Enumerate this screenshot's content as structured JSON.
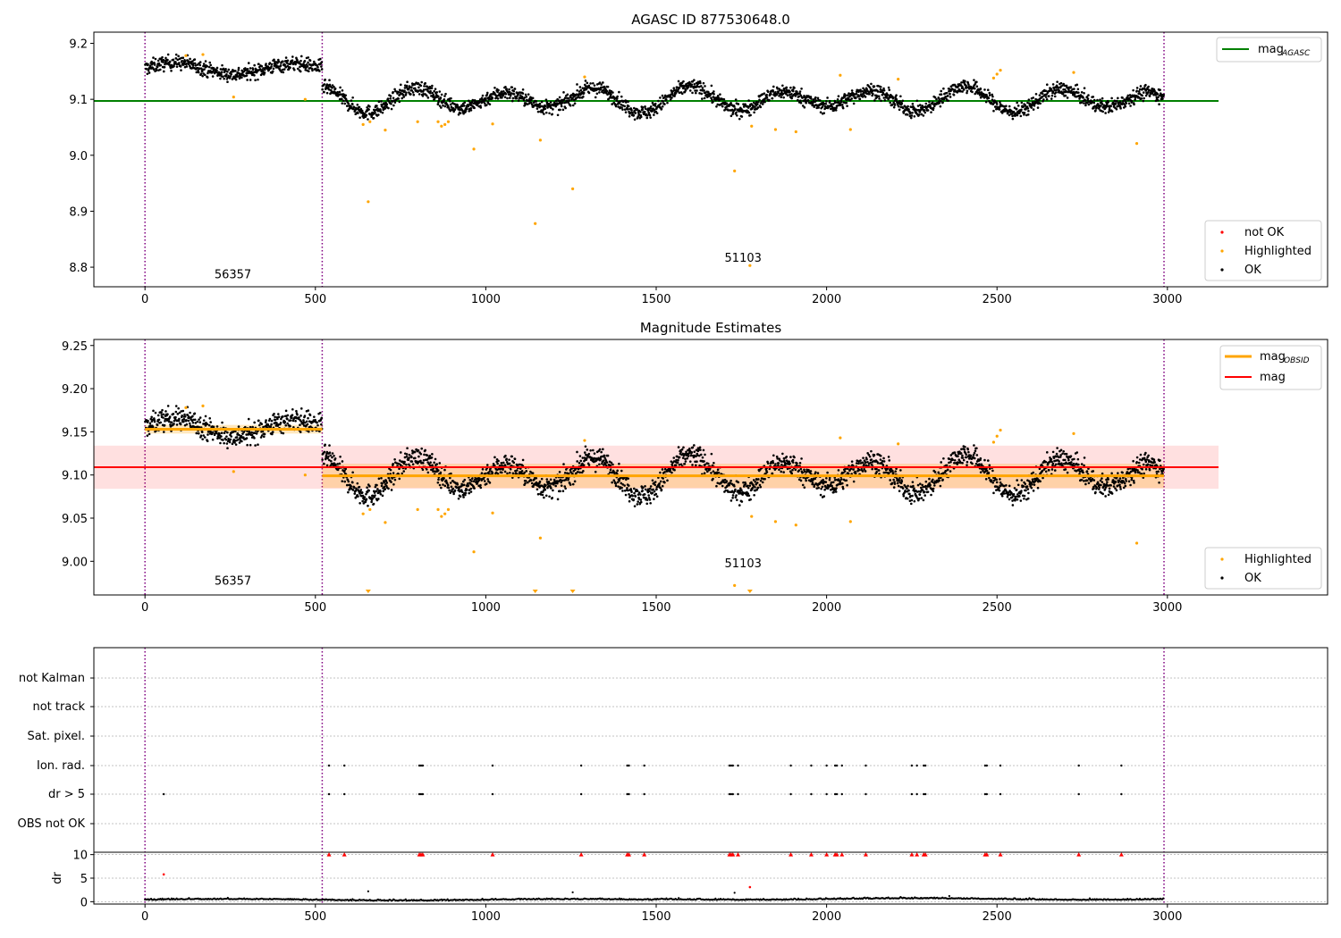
{
  "chart_data": [
    {
      "type": "scatter",
      "title": "AGASC ID 877530648.0",
      "xlim": [
        -150,
        3470
      ],
      "ylim": [
        8.765,
        9.22
      ],
      "xticks": [
        0,
        500,
        1000,
        1500,
        2000,
        2500,
        3000
      ],
      "yticks": [
        8.8,
        8.9,
        9.0,
        9.1,
        9.2
      ],
      "grid": false,
      "vlines": [
        0,
        520,
        2990
      ],
      "hline": {
        "name": "mag_AGASC",
        "y": 9.097,
        "color": "#008000",
        "xrange": [
          -150,
          3150
        ]
      },
      "obsid_labels": [
        {
          "x": 258,
          "y": 8.78,
          "text": "56357"
        },
        {
          "x": 1755,
          "y": 8.81,
          "text": "51103"
        }
      ],
      "legend_line": {
        "name": "mag",
        "sub": "AGASC",
        "color": "#008000",
        "placement": "upper right"
      },
      "legend_points": {
        "placement": "lower right",
        "entries": [
          {
            "label": "not OK",
            "color": "#ff0000"
          },
          {
            "label": "Highlighted",
            "color": "#ffa500"
          },
          {
            "label": "OK",
            "color": "#000000"
          }
        ]
      },
      "ok_segments": [
        {
          "x0": 0,
          "x1": 520,
          "level": 9.155,
          "noise": 0.008,
          "amp": 0.005,
          "period": 320
        },
        {
          "x0": 520,
          "x1": 2990,
          "level": 9.1,
          "noise": 0.008,
          "amp": 0.018,
          "period": 270
        }
      ],
      "highlighted_points": [
        [
          120,
          9.178
        ],
        [
          170,
          9.18
        ],
        [
          260,
          9.104
        ],
        [
          470,
          9.1
        ],
        [
          640,
          9.055
        ],
        [
          655,
          8.917
        ],
        [
          660,
          9.06
        ],
        [
          705,
          9.045
        ],
        [
          800,
          9.06
        ],
        [
          860,
          9.06
        ],
        [
          870,
          9.052
        ],
        [
          880,
          9.055
        ],
        [
          890,
          9.06
        ],
        [
          965,
          9.011
        ],
        [
          1020,
          9.056
        ],
        [
          1145,
          8.878
        ],
        [
          1160,
          9.027
        ],
        [
          1255,
          8.94
        ],
        [
          1290,
          9.14
        ],
        [
          1730,
          8.972
        ],
        [
          1775,
          8.803
        ],
        [
          1780,
          9.052
        ],
        [
          1850,
          9.046
        ],
        [
          1910,
          9.042
        ],
        [
          2040,
          9.143
        ],
        [
          2070,
          9.046
        ],
        [
          2210,
          9.136
        ],
        [
          2490,
          9.138
        ],
        [
          2500,
          9.145
        ],
        [
          2510,
          9.152
        ],
        [
          2725,
          9.148
        ],
        [
          2910,
          9.021
        ]
      ]
    },
    {
      "type": "scatter",
      "title": "Magnitude Estimates",
      "xlim": [
        -150,
        3470
      ],
      "ylim": [
        8.961,
        9.257
      ],
      "xticks": [
        0,
        500,
        1000,
        1500,
        2000,
        2500,
        3000
      ],
      "yticks": [
        9.0,
        9.05,
        9.1,
        9.15,
        9.2,
        9.25
      ],
      "ytick_labels": [
        "9.00",
        "9.05",
        "9.10",
        "9.15",
        "9.20",
        "9.25"
      ],
      "grid": false,
      "vlines": [
        0,
        520,
        2990
      ],
      "mag_line": {
        "name": "mag",
        "y": 9.109,
        "band": [
          9.084,
          9.134
        ],
        "color": "#ff0000",
        "xrange": [
          -150,
          3150
        ]
      },
      "mag_obsid": [
        {
          "x0": 0,
          "x1": 520,
          "y": 9.153,
          "band": [
            9.148,
            9.158
          ]
        },
        {
          "x0": 520,
          "x1": 2990,
          "y": 9.099,
          "band": [
            9.085,
            9.113
          ]
        }
      ],
      "obsid_labels": [
        {
          "x": 258,
          "y": 8.973,
          "text": "56357"
        },
        {
          "x": 1755,
          "y": 8.993,
          "text": "51103"
        }
      ],
      "legend_lines": {
        "placement": "upper right",
        "entries": [
          {
            "label": "mag",
            "sub": "OBSID",
            "color": "#ffa500"
          },
          {
            "label": "mag",
            "sub": "",
            "color": "#ff0000"
          }
        ]
      },
      "legend_points": {
        "placement": "lower right",
        "entries": [
          {
            "label": "Highlighted",
            "color": "#ffa500"
          },
          {
            "label": "OK",
            "color": "#000000"
          }
        ]
      },
      "lower_limit_markers": [
        655,
        1145,
        1255,
        1775
      ]
    },
    {
      "type": "scatter",
      "title": "",
      "xlim": [
        -150,
        3470
      ],
      "xticks": [
        0,
        500,
        1000,
        1500,
        2000,
        2500,
        3000
      ],
      "vlines": [
        0,
        520,
        2990
      ],
      "flag_rows": [
        "not Kalman",
        "not track",
        "Sat. pixel.",
        "Ion. rad.",
        "dr > 5",
        "OBS not OK"
      ],
      "ion_rad_x": [
        540,
        585,
        805,
        810,
        815,
        1020,
        1280,
        1415,
        1420,
        1465,
        1715,
        1720,
        1725,
        1740,
        1895,
        1955,
        2000,
        2025,
        2030,
        2045,
        2115,
        2250,
        2265,
        2285,
        2290,
        2465,
        2470,
        2510,
        2740,
        2865
      ],
      "dr5_x": [
        55,
        540,
        585,
        805,
        810,
        815,
        1020,
        1280,
        1415,
        1420,
        1465,
        1715,
        1720,
        1725,
        1740,
        1895,
        1955,
        2000,
        2025,
        2030,
        2045,
        2115,
        2250,
        2265,
        2285,
        2290,
        2465,
        2470,
        2510,
        2740,
        2865
      ],
      "dr_panel": {
        "ylabel": "dr",
        "ylim": [
          -0.5,
          10.5
        ],
        "yticks": [
          0,
          5,
          10
        ],
        "clipped_markers_x": [
          540,
          585,
          805,
          810,
          815,
          1020,
          1280,
          1415,
          1420,
          1465,
          1715,
          1720,
          1725,
          1740,
          1895,
          1955,
          2000,
          2025,
          2030,
          2045,
          2115,
          2250,
          2265,
          2285,
          2290,
          2465,
          2470,
          2510,
          2740,
          2865
        ],
        "red_points": [
          [
            55,
            5.8
          ],
          [
            1775,
            3.1
          ]
        ],
        "black_outliers": [
          [
            655,
            2.2
          ],
          [
            1255,
            2.0
          ],
          [
            1730,
            1.9
          ],
          [
            2360,
            1.2
          ]
        ]
      }
    }
  ]
}
